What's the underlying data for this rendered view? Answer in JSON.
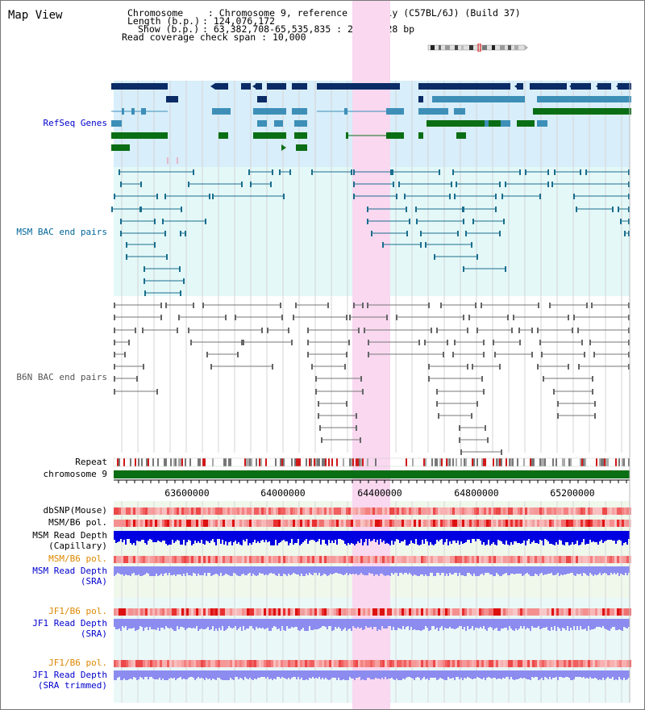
{
  "header": {
    "title": "Map View",
    "chromosome_label": "Chromosome",
    "chromosome_value": "Chromosome 9, reference assembly (C57BL/6J) (Build 37)",
    "length_label": "Length (b.p.)",
    "length_value": "124,076,172",
    "show_label": "Show (b.p.)",
    "show_value": "63,382,708-65,535,835 : 2,153,128 bp",
    "coverage_label": "Read coverage check span",
    "coverage_value": "10,000"
  },
  "tracks": {
    "refseq": "RefSeq Genes",
    "msm_bac": "MSM BAC end pairs",
    "b6n_bac": "B6N BAC end pairs",
    "repeat": "Repeat",
    "chromosome": "chromosome 9",
    "dbsnp": "dbSNP(Mouse)",
    "msm_b6_pol": "MSM/B6 pol.",
    "msm_depth_cap_1": "MSM Read Depth",
    "msm_depth_cap_2": "(Capillary)",
    "msm_b6_pol_2": "MSM/B6 pol.",
    "msm_depth_sra_1": "MSM Read Depth",
    "msm_depth_sra_2": "(SRA)",
    "jf1_b6_pol": "JF1/B6 pol.",
    "jf1_depth_sra_1": "JF1 Read Depth",
    "jf1_depth_sra_2": "(SRA)",
    "jf1_b6_pol_2": "JF1/B6 pol.",
    "jf1_depth_trim_1": "JF1 Read Depth",
    "jf1_depth_trim_2": "(SRA trimmed)"
  },
  "axis": {
    "ticks": [
      "63600000",
      "64000000",
      "64400000",
      "64800000",
      "65200000"
    ]
  },
  "colors": {
    "highlight": "#f9d8f0",
    "refseq_bg": "#d8eefa",
    "bac_bg": "#e4f8f8",
    "navy": "#0a2b66",
    "steel": "#3d8fb8",
    "green": "#0a6e14",
    "depth_blue": "#0000e0",
    "depth_lav": "#8c8cf0"
  }
}
